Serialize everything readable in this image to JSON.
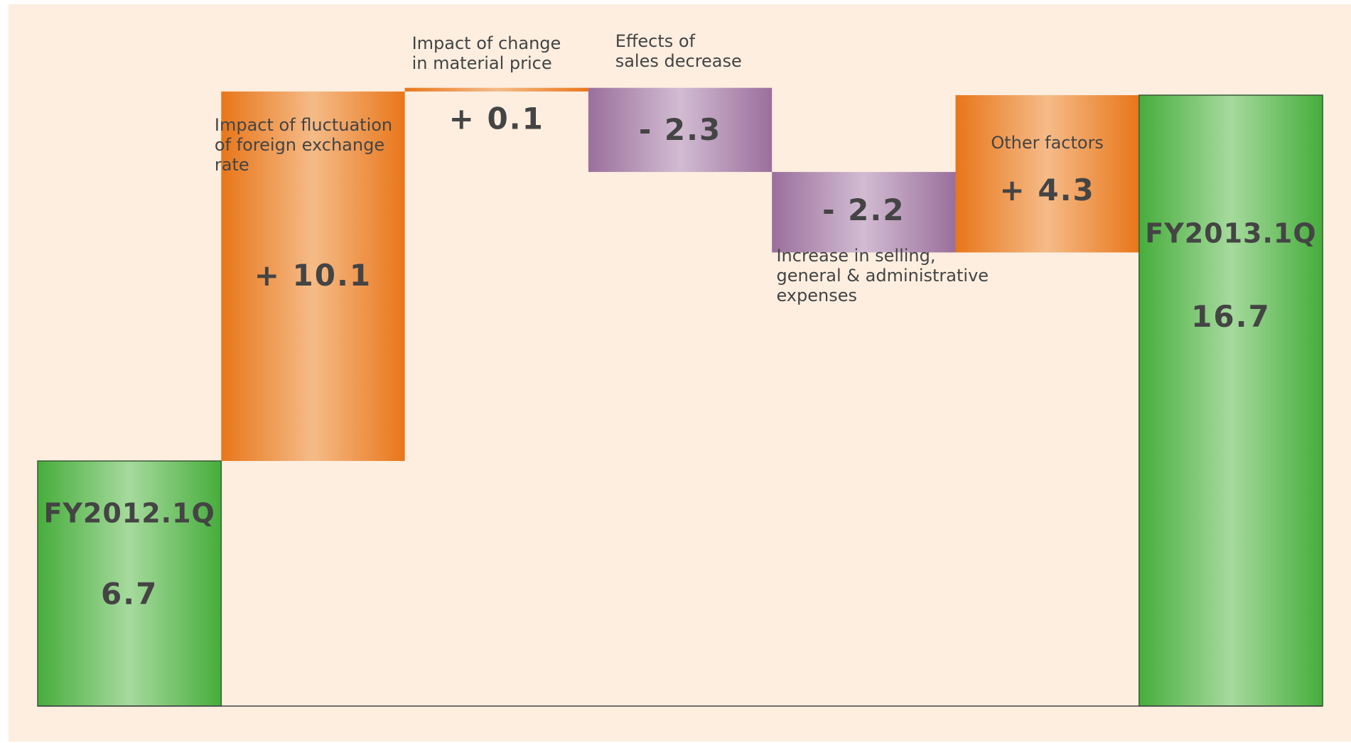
{
  "chart_data": {
    "type": "waterfall",
    "categories": [
      "FY2012.1Q",
      "Impact of fluctuation\nof foreign exchange\nrate",
      "Impact of change\nin material price",
      "Effects of\nsales decrease",
      "Increase in selling,\ngeneral & administrative\nexpenses",
      "Other factors",
      "FY2013.1Q"
    ],
    "values": [
      6.7,
      10.1,
      0.1,
      -2.3,
      -2.2,
      4.3,
      16.7
    ],
    "value_labels": [
      "6.7",
      "+ 10.1",
      "+ 0.1",
      "- 2.3",
      "- 2.2",
      "+ 4.3",
      "16.7"
    ],
    "totals": [
      true,
      false,
      false,
      false,
      false,
      false,
      true
    ],
    "colors": {
      "total": "#4cb040",
      "increase": "#e8761a",
      "decrease": "#9a6f9c"
    },
    "ylim": [
      0,
      18
    ]
  }
}
